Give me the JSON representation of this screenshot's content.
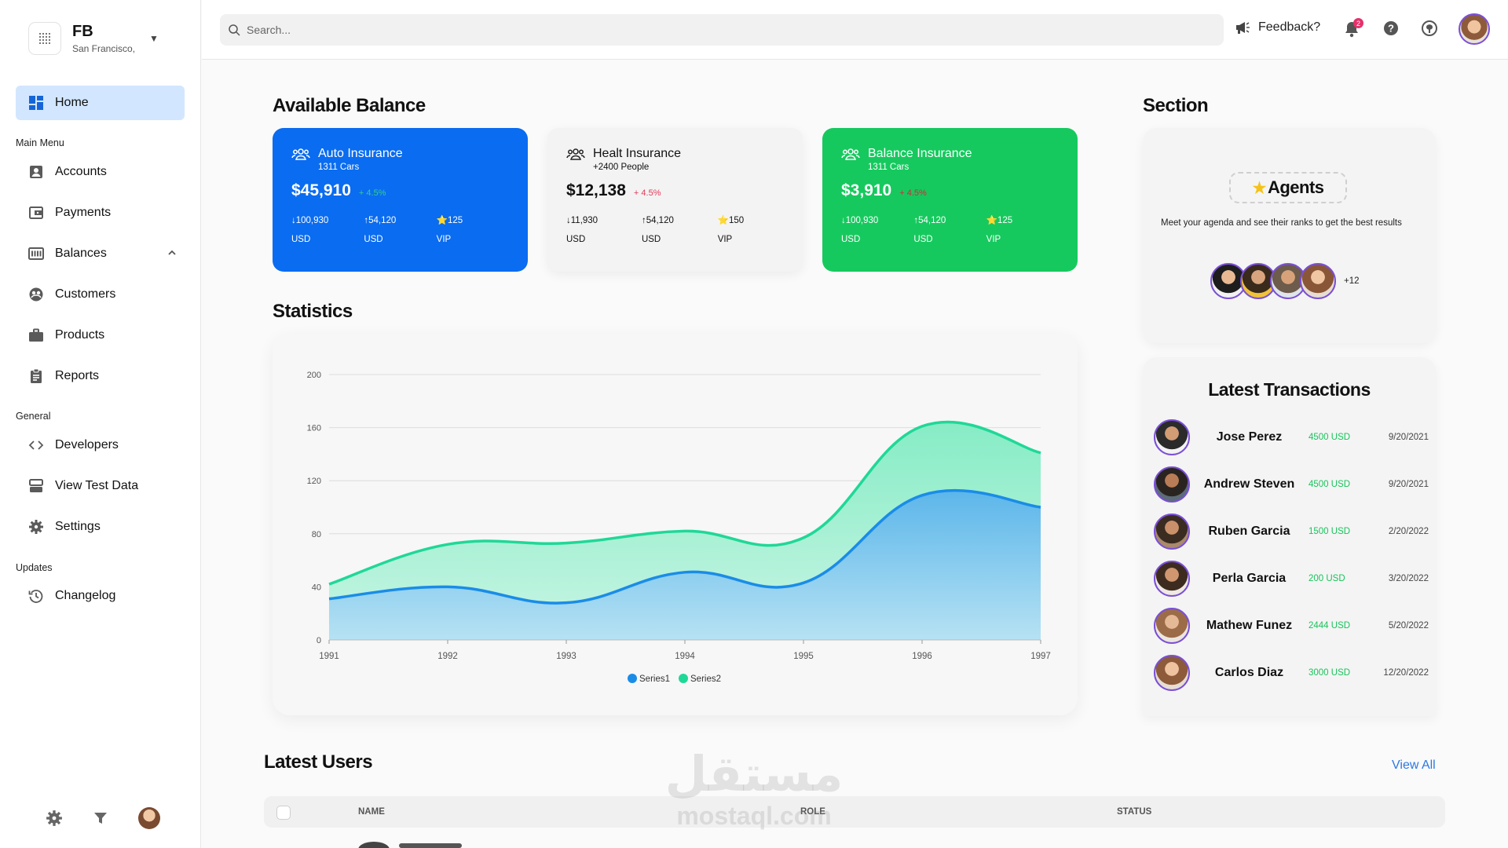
{
  "org": {
    "name": "FB",
    "location": "San Francisco,"
  },
  "nav": {
    "home": "Home",
    "sections": {
      "main": "Main Menu",
      "general": "General",
      "updates": "Updates"
    },
    "main_items": [
      "Accounts",
      "Payments",
      "Balances",
      "Customers",
      "Products",
      "Reports"
    ],
    "general_items": [
      "Developers",
      "View Test Data",
      "Settings"
    ],
    "updates_items": [
      "Changelog"
    ]
  },
  "topbar": {
    "search_placeholder": "Search...",
    "feedback": "Feedback?",
    "notification_count": "2"
  },
  "headings": {
    "balance": "Available Balance",
    "statistics": "Statistics",
    "section": "Section",
    "latest_users": "Latest Users"
  },
  "cards": [
    {
      "title": "Auto Insurance",
      "sub": "1311 Cars",
      "amount": "$45,910",
      "change": "+ 4.5%",
      "s1a": "↓100,930",
      "s1b": "USD",
      "s2a": "↑54,120",
      "s2b": "USD",
      "s3a": "⭐125",
      "s3b": "VIP",
      "bg": "#0a6cf0"
    },
    {
      "title": "Healt Insurance",
      "sub": "+2400 People",
      "amount": "$12,138",
      "change": "+ 4.5%",
      "s1a": "↓11,930 USD",
      "s2a": "↑54,120 USD",
      "s3a": "⭐150 VIP",
      "bg": "#f3f3f3"
    },
    {
      "title": "Balance Insurance",
      "sub": "1311 Cars",
      "amount": "$3,910",
      "change": "+ 4.5%",
      "s1a": "↓100,930",
      "s1b": "USD",
      "s2a": "↑54,120",
      "s2b": "USD",
      "s3a": "⭐125",
      "s3b": "VIP",
      "bg": "#16c95e"
    }
  ],
  "chart_data": {
    "type": "area",
    "x": [
      1991,
      1992,
      1993,
      1994,
      1995,
      1996,
      1997
    ],
    "series": [
      {
        "name": "Series1",
        "values": [
          31,
          40,
          28,
          51,
          43,
          109,
          100
        ],
        "color": "#1a8ce8"
      },
      {
        "name": "Series2",
        "values": [
          42,
          72,
          73,
          82,
          77,
          161,
          141
        ],
        "color": "#1fd897"
      }
    ],
    "y_ticks": [
      0,
      40,
      80,
      120,
      160,
      200
    ],
    "ylim": [
      0,
      200
    ],
    "grid": true,
    "legend": "bottom-center"
  },
  "agents": {
    "title": "Agents",
    "description": "Meet your agenda and see their ranks to get the best results",
    "more": "+12"
  },
  "transactions": {
    "title": "Latest Transactions",
    "rows": [
      {
        "name": "Jose Perez",
        "amount": "4500 USD",
        "date": "9/20/2021"
      },
      {
        "name": "Andrew Steven",
        "amount": "4500 USD",
        "date": "9/20/2021"
      },
      {
        "name": "Ruben Garcia",
        "amount": "1500 USD",
        "date": "2/20/2022"
      },
      {
        "name": "Perla Garcia",
        "amount": "200 USD",
        "date": "3/20/2022"
      },
      {
        "name": "Mathew Funez",
        "amount": "2444 USD",
        "date": "5/20/2022"
      },
      {
        "name": "Carlos Diaz",
        "amount": "3000 USD",
        "date": "12/20/2022"
      }
    ]
  },
  "users_table": {
    "view_all": "View All",
    "columns": [
      "NAME",
      "ROLE",
      "STATUS"
    ]
  },
  "watermark": {
    "arabic": "مستقل",
    "latin": "mostaql.com"
  }
}
